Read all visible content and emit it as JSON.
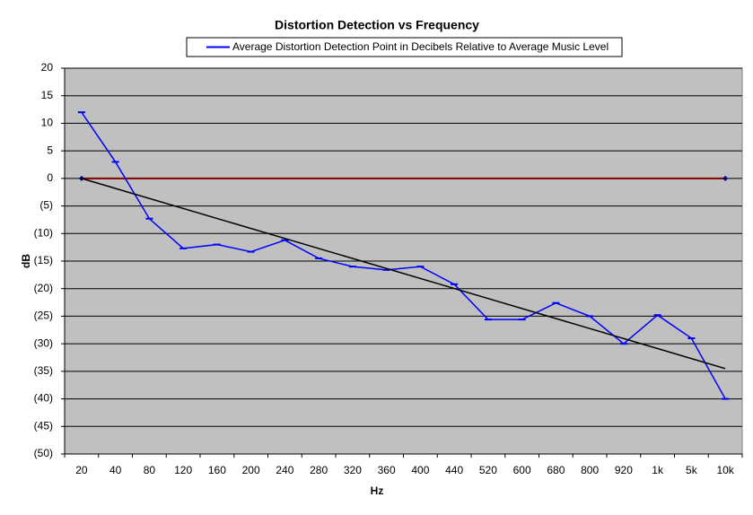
{
  "chart_data": {
    "type": "line",
    "title": "Distortion Detection vs Frequency",
    "x_label": "Hz",
    "y_label": "dB",
    "categories": [
      "20",
      "40",
      "80",
      "120",
      "160",
      "200",
      "240",
      "280",
      "320",
      "360",
      "400",
      "440",
      "520",
      "600",
      "680",
      "800",
      "920",
      "1k",
      "5k",
      "10k"
    ],
    "series": [
      {
        "name": "Average Distortion Detection Point in Decibels Relative to Average Music Level",
        "color": "#0000ff",
        "values": [
          12,
          3,
          -7.3,
          -12.7,
          -12,
          -13.3,
          -11.2,
          -14.5,
          -16,
          -16.6,
          -16,
          -19.2,
          -25.6,
          -25.6,
          -22.6,
          -25,
          -30,
          -24.8,
          -29,
          -40
        ]
      }
    ],
    "reference_line": {
      "value": 0,
      "color": "#800000"
    },
    "trendline": {
      "color": "#000000",
      "values": [
        0,
        -34.5
      ]
    },
    "ylim": [
      -50,
      20
    ],
    "yticks": [
      {
        "value": -50,
        "label": "(50)"
      },
      {
        "value": -45,
        "label": "(45)"
      },
      {
        "value": -40,
        "label": "(40)"
      },
      {
        "value": -35,
        "label": "(35)"
      },
      {
        "value": -30,
        "label": "(30)"
      },
      {
        "value": -25,
        "label": "(25)"
      },
      {
        "value": -20,
        "label": "(20)"
      },
      {
        "value": -15,
        "label": "(15)"
      },
      {
        "value": -10,
        "label": "(10)"
      },
      {
        "value": -5,
        "label": "(5)"
      },
      0,
      5,
      10,
      15,
      20
    ],
    "negative_tick_color": "#ff0000",
    "grid": true,
    "plot_background": "#c0c0c0"
  }
}
